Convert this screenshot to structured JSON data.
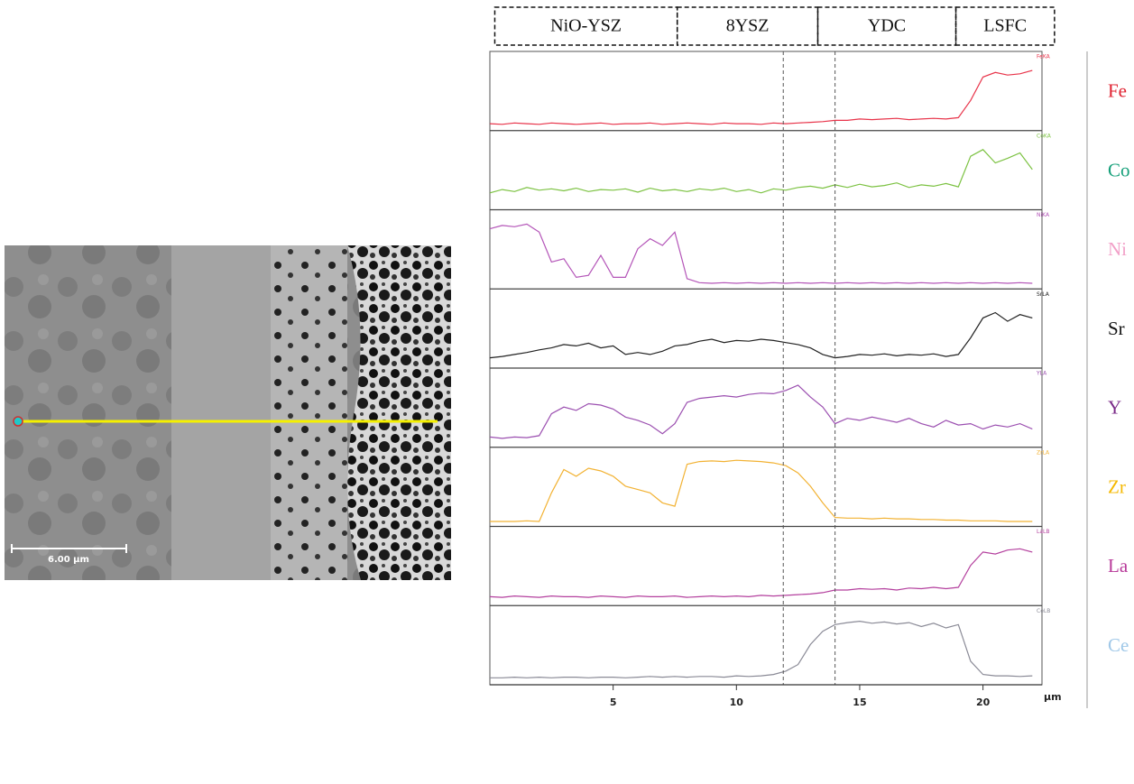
{
  "image": {
    "scale_bar": "6.00 µm"
  },
  "chart_data": {
    "type": "line",
    "x": [
      0,
      0.5,
      1,
      1.5,
      2,
      2.5,
      3,
      3.5,
      4,
      4.5,
      5,
      5.5,
      6,
      6.5,
      7,
      7.5,
      8,
      8.5,
      9,
      9.5,
      10,
      10.5,
      11,
      11.5,
      12,
      12.5,
      13,
      13.5,
      14,
      14.5,
      15,
      15.5,
      16,
      16.5,
      17,
      17.5,
      18,
      18.5,
      19,
      19.5,
      20,
      20.5,
      21,
      21.5,
      22
    ],
    "xlim": [
      0,
      22.1
    ],
    "xticks": [
      5,
      10,
      15,
      20
    ],
    "x_unit": "µm",
    "ylim": [
      0,
      100
    ],
    "reference_lines": [
      11.9,
      14.0
    ],
    "layers": [
      {
        "name": "NiO-YSZ",
        "range": [
          0.2,
          7.6
        ]
      },
      {
        "name": "8YSZ",
        "range": [
          7.6,
          13.3
        ]
      },
      {
        "name": "YDC",
        "range": [
          13.3,
          18.9
        ]
      },
      {
        "name": "LSFC",
        "range": [
          18.9,
          22.9
        ]
      }
    ],
    "series": [
      {
        "name": "Fe",
        "channel": "FeKA",
        "color": "#e8344a",
        "label_color": "#e0202f",
        "values": [
          5,
          4,
          6,
          5,
          4,
          6,
          5,
          4,
          5,
          6,
          4,
          5,
          5,
          6,
          4,
          5,
          6,
          5,
          4,
          6,
          5,
          5,
          4,
          6,
          5,
          6,
          7,
          8,
          10,
          10,
          12,
          11,
          12,
          13,
          11,
          12,
          13,
          12,
          14,
          40,
          75,
          82,
          78,
          80,
          85
        ]
      },
      {
        "name": "Co",
        "channel": "CoKA",
        "color": "#7cc242",
        "label_color": "#16a07a",
        "values": [
          20,
          25,
          22,
          28,
          24,
          26,
          23,
          27,
          22,
          25,
          24,
          26,
          21,
          27,
          23,
          25,
          22,
          26,
          24,
          27,
          22,
          25,
          20,
          26,
          24,
          28,
          30,
          27,
          32,
          28,
          33,
          29,
          31,
          35,
          28,
          32,
          30,
          34,
          29,
          75,
          85,
          65,
          72,
          80,
          55
        ]
      },
      {
        "name": "Ni",
        "channel": "NiKA",
        "color": "#b455b8",
        "label_color": "#f2a0c8",
        "values": [
          85,
          90,
          88,
          92,
          80,
          35,
          40,
          12,
          15,
          45,
          12,
          12,
          55,
          70,
          60,
          80,
          10,
          4,
          3,
          4,
          3,
          4,
          3,
          4,
          3,
          4,
          3,
          4,
          3,
          4,
          3,
          4,
          3,
          4,
          3,
          4,
          3,
          4,
          3,
          4,
          3,
          4,
          3,
          4,
          3
        ]
      },
      {
        "name": "Sr",
        "channel": "SrLA",
        "color": "#222222",
        "label_color": "#111111",
        "values": [
          10,
          12,
          15,
          18,
          22,
          25,
          30,
          28,
          32,
          25,
          28,
          15,
          18,
          15,
          20,
          28,
          30,
          35,
          38,
          33,
          36,
          35,
          38,
          36,
          33,
          30,
          25,
          15,
          10,
          12,
          15,
          14,
          16,
          13,
          15,
          14,
          16,
          12,
          15,
          40,
          70,
          78,
          65,
          75,
          70
        ]
      },
      {
        "name": "Y",
        "channel": "YLA",
        "color": "#9b4fb0",
        "label_color": "#7a2a88",
        "values": [
          10,
          8,
          10,
          9,
          12,
          45,
          55,
          50,
          60,
          58,
          52,
          40,
          35,
          28,
          15,
          30,
          62,
          68,
          70,
          72,
          70,
          74,
          76,
          75,
          80,
          88,
          70,
          55,
          30,
          38,
          35,
          40,
          36,
          32,
          38,
          30,
          25,
          35,
          28,
          30,
          22,
          28,
          25,
          30,
          22
        ]
      },
      {
        "name": "Zr",
        "channel": "ZrLA",
        "color": "#f2b233",
        "label_color": "#f5b800",
        "values": [
          2,
          2,
          2,
          3,
          2,
          45,
          80,
          70,
          82,
          78,
          70,
          55,
          50,
          45,
          30,
          25,
          88,
          92,
          93,
          92,
          94,
          93,
          92,
          90,
          86,
          75,
          55,
          30,
          8,
          7,
          7,
          6,
          7,
          6,
          6,
          5,
          5,
          4,
          4,
          3,
          3,
          3,
          2,
          2,
          2
        ]
      },
      {
        "name": "La",
        "channel": "LaLB",
        "color": "#b4409e",
        "label_color": "#b83a9a",
        "values": [
          8,
          7,
          9,
          8,
          7,
          9,
          8,
          8,
          7,
          9,
          8,
          7,
          9,
          8,
          8,
          9,
          7,
          8,
          9,
          8,
          9,
          8,
          10,
          9,
          10,
          11,
          12,
          14,
          18,
          18,
          20,
          19,
          20,
          18,
          21,
          20,
          22,
          20,
          22,
          55,
          75,
          72,
          78,
          80,
          75
        ]
      },
      {
        "name": "Ce",
        "channel": "CeLB",
        "color": "#8a8a96",
        "label_color": "#a0c8e8",
        "values": [
          5,
          5,
          6,
          5,
          6,
          5,
          6,
          6,
          5,
          6,
          6,
          5,
          6,
          7,
          6,
          7,
          6,
          7,
          7,
          6,
          8,
          7,
          8,
          10,
          15,
          25,
          55,
          75,
          85,
          88,
          90,
          87,
          89,
          86,
          88,
          82,
          87,
          80,
          85,
          30,
          10,
          8,
          8,
          7,
          8
        ]
      }
    ]
  }
}
